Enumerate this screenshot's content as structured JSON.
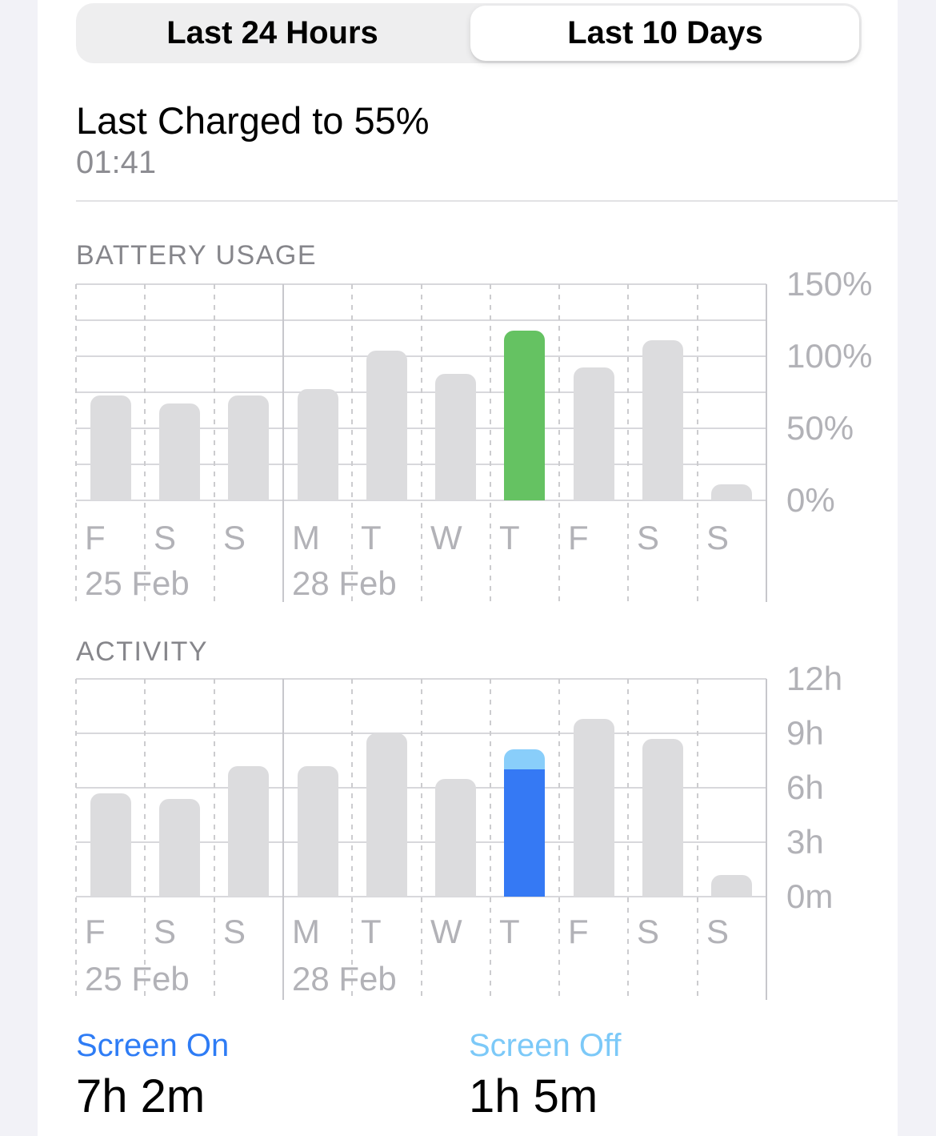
{
  "segmented": {
    "options": [
      {
        "label": "Last 24 Hours",
        "selected": false
      },
      {
        "label": "Last 10 Days",
        "selected": true
      }
    ]
  },
  "last_charged": {
    "title": "Last Charged to 55%",
    "time": "01:41"
  },
  "colors": {
    "screen_on_blue": "#3579f4",
    "screen_off_light_blue": "#89cefa",
    "highlight_green": "#65c262",
    "bar_gray": "#dcdcde",
    "side_strip_gray": "#f2f2f7"
  },
  "chart_data": [
    {
      "id": "battery-usage",
      "type": "bar",
      "title": "BATTERY USAGE",
      "categories": [
        "F",
        "S",
        "S",
        "M",
        "T",
        "W",
        "T",
        "F",
        "S",
        "S"
      ],
      "values": [
        73,
        67,
        73,
        77,
        104,
        88,
        118,
        92,
        111,
        11
      ],
      "unit": "percent",
      "ylim": [
        0,
        150
      ],
      "gridline_step": 25,
      "yticks": [
        {
          "value": 0,
          "label": "0%"
        },
        {
          "value": 50,
          "label": "50%"
        },
        {
          "value": 100,
          "label": "100%"
        },
        {
          "value": 150,
          "label": "150%"
        }
      ],
      "bar_color": "#dcdcde",
      "highlight": {
        "index": 6,
        "color": "#65c262"
      },
      "date_markers": [
        {
          "index": 0,
          "label": "25 Feb",
          "solid_line": false
        },
        {
          "index": 3,
          "label": "28 Feb",
          "solid_line": true
        }
      ],
      "legend_position": "right",
      "grid": true
    },
    {
      "id": "activity",
      "type": "bar",
      "title": "ACTIVITY",
      "categories": [
        "F",
        "S",
        "S",
        "M",
        "T",
        "W",
        "T",
        "F",
        "S",
        "S"
      ],
      "values": [
        5.7,
        5.4,
        7.2,
        7.2,
        9.0,
        6.5,
        8.1,
        9.8,
        8.7,
        1.2
      ],
      "unit": "hours",
      "ylim": [
        0,
        12
      ],
      "gridline_step": 3,
      "yticks": [
        {
          "value": 0,
          "label": "0m"
        },
        {
          "value": 3,
          "label": "3h"
        },
        {
          "value": 6,
          "label": "6h"
        },
        {
          "value": 9,
          "label": "9h"
        },
        {
          "value": 12,
          "label": "12h"
        }
      ],
      "bar_color": "#dcdcde",
      "highlight": {
        "index": 6,
        "stack": [
          {
            "name": "Screen On",
            "value": 7.03,
            "color": "#3579f4"
          },
          {
            "name": "Screen Off",
            "value": 1.08,
            "color": "#89cefa"
          }
        ]
      },
      "date_markers": [
        {
          "index": 0,
          "label": "25 Feb",
          "solid_line": false
        },
        {
          "index": 3,
          "label": "28 Feb",
          "solid_line": true
        }
      ],
      "legend_position": "right",
      "grid": true
    }
  ],
  "stats": {
    "screen_on": {
      "label": "Screen On",
      "value": "7h 2m"
    },
    "screen_off": {
      "label": "Screen Off",
      "value": "1h 5m"
    }
  }
}
